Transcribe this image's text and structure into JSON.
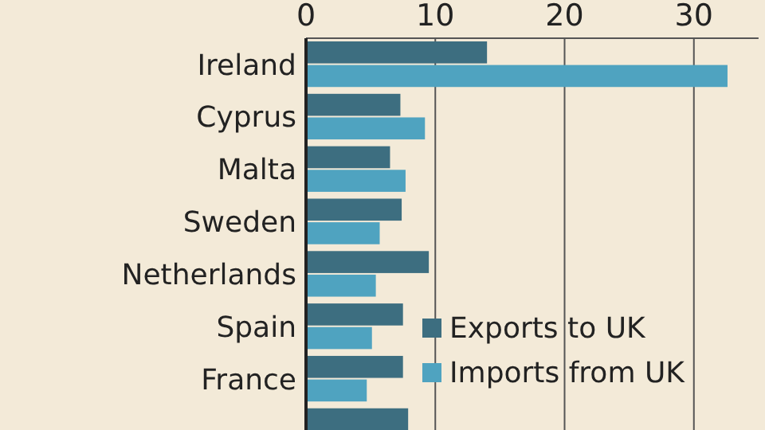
{
  "chart_data": {
    "type": "bar",
    "orientation": "horizontal",
    "categories": [
      "Ireland",
      "Cyprus",
      "Malta",
      "Sweden",
      "Netherlands",
      "Spain",
      "France",
      null
    ],
    "series": [
      {
        "name": "Exports to UK",
        "color": "#3d6e80",
        "values": [
          14,
          7.3,
          6.5,
          7.4,
          9.5,
          7.5,
          7.5,
          7.9
        ]
      },
      {
        "name": "Imports from UK",
        "color": "#4fa3c0",
        "values": [
          32.6,
          9.2,
          7.7,
          5.7,
          5.4,
          5.1,
          4.7,
          null
        ]
      }
    ],
    "xlim": [
      0,
      35
    ],
    "xticks": [
      0,
      10,
      20,
      30
    ],
    "grid": "x",
    "legend": "bottom right"
  }
}
